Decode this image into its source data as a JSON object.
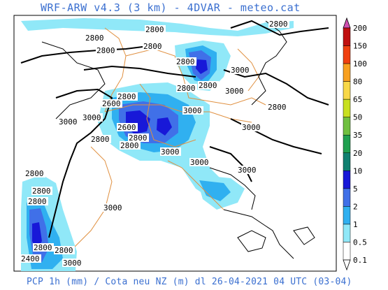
{
  "header": {
    "title": "WRF-ARW v4.3 (3 km) - 4DVAR - meteo.cat"
  },
  "footer": {
    "caption": "PCP 1h (mm) / Cota neu NZ (m) dl 26-04-2021 04 UTC (03-04)"
  },
  "legend": {
    "levels": [
      {
        "label": "200",
        "color": "#d050b0"
      },
      {
        "label": "150",
        "color": "#c01010"
      },
      {
        "label": "100",
        "color": "#f04010"
      },
      {
        "label": "80",
        "color": "#f8a020"
      },
      {
        "label": "65",
        "color": "#f8d848"
      },
      {
        "label": "50",
        "color": "#c8e020"
      },
      {
        "label": "35",
        "color": "#70c040"
      },
      {
        "label": "20",
        "color": "#20a050"
      },
      {
        "label": "10",
        "color": "#108070"
      },
      {
        "label": "5",
        "color": "#1818d8"
      },
      {
        "label": "2",
        "color": "#4070e8"
      },
      {
        "label": "1",
        "color": "#30b0f0"
      },
      {
        "label": "0.5",
        "color": "#90e8f8"
      },
      {
        "label": "0.1",
        "color": "#ffffff"
      }
    ]
  },
  "contours": {
    "labels": [
      "2800",
      "2800",
      "2800",
      "2800",
      "2800",
      "2800",
      "3000",
      "2800",
      "2800",
      "3000",
      "2800",
      "3000",
      "3000",
      "2600",
      "3000",
      "2600",
      "2800",
      "2800",
      "2800",
      "2800",
      "3000",
      "3000",
      "3000",
      "3000",
      "2800",
      "2800",
      "3000",
      "2800",
      "2800",
      "2800",
      "2400",
      "3000"
    ]
  }
}
